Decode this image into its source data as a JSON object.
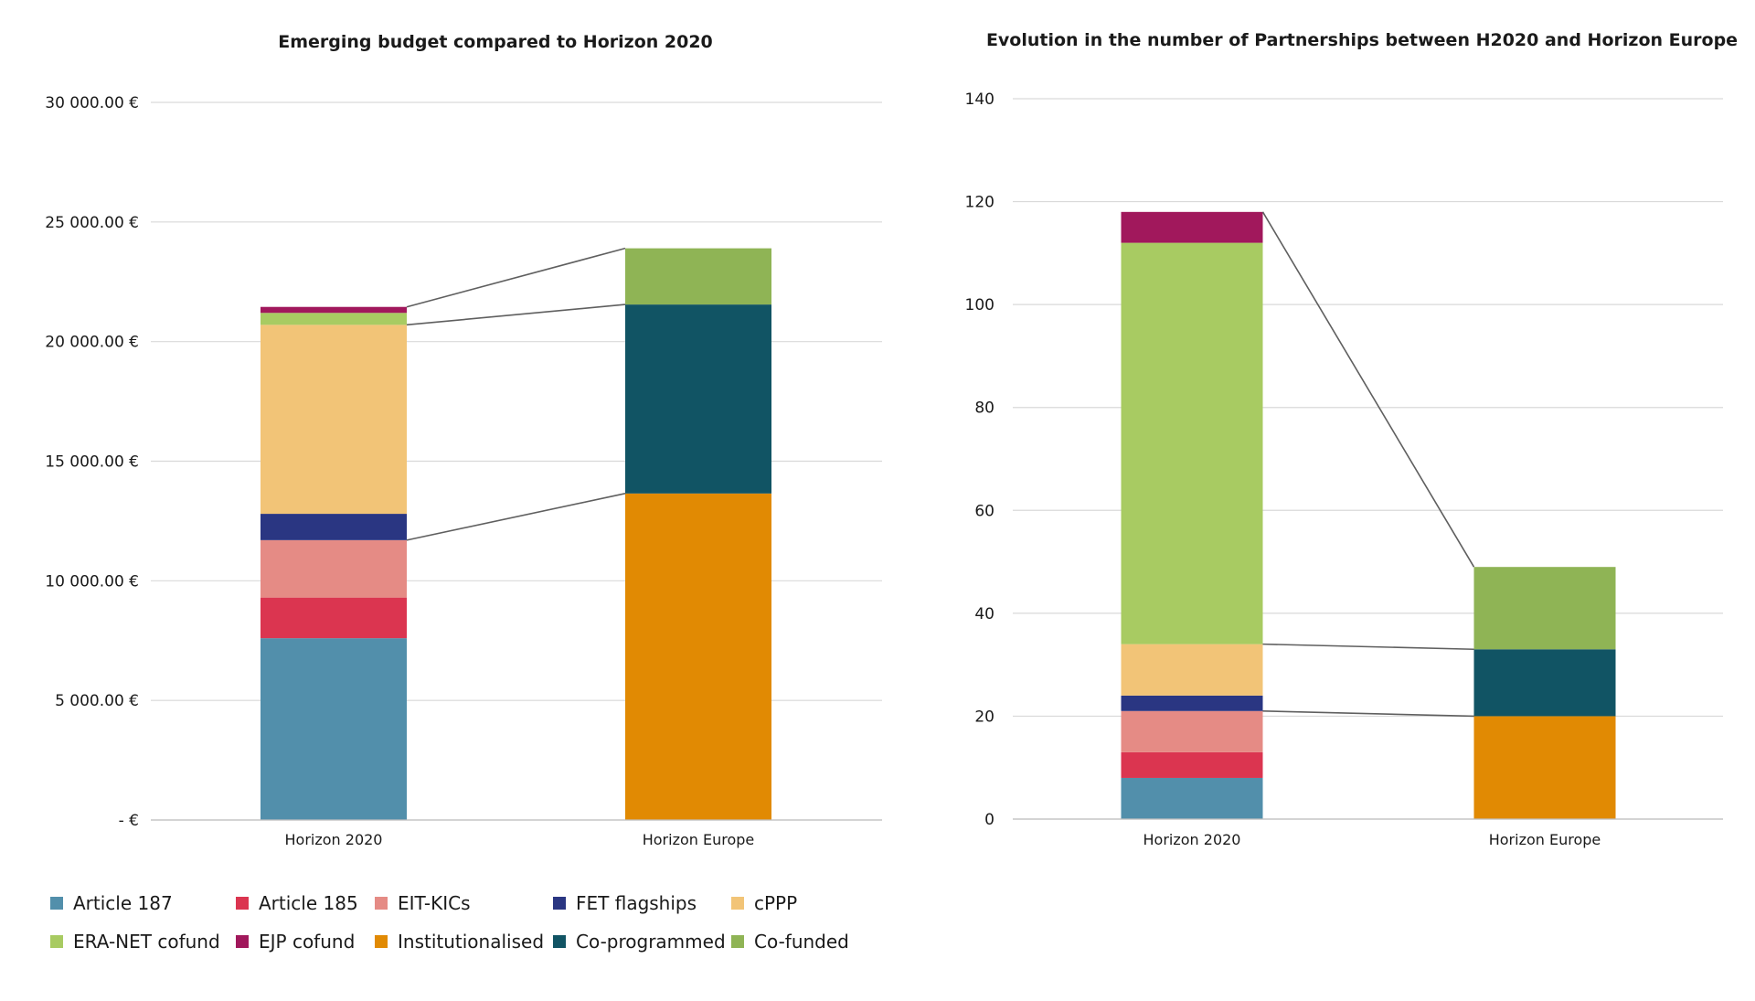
{
  "legend": [
    {
      "name": "Article 187",
      "color": "#528FAB"
    },
    {
      "name": "Article 185",
      "color": "#DB3550"
    },
    {
      "name": "EIT-KICs",
      "color": "#E58B85"
    },
    {
      "name": "FET flagships",
      "color": "#2A3682"
    },
    {
      "name": "cPPP",
      "color": "#F2C477"
    },
    {
      "name": "ERA-NET cofund",
      "color": "#A8CB62"
    },
    {
      "name": "EJP cofund",
      "color": "#A1185C"
    },
    {
      "name": "Institutionalised",
      "color": "#E18A03"
    },
    {
      "name": "Co-programmed",
      "color": "#115464"
    },
    {
      "name": "Co-funded",
      "color": "#8FB455"
    }
  ],
  "chart_data": [
    {
      "type": "bar",
      "stacked": true,
      "title": "Emerging budget compared to Horizon 2020",
      "categories": [
        "Horizon 2020",
        "Horizon Europe"
      ],
      "ylim": [
        0,
        30000
      ],
      "ytick_values": [
        0,
        5000,
        10000,
        15000,
        20000,
        25000,
        30000
      ],
      "ytick_labels": [
        "-   €",
        "5 000.00 €",
        "10 000.00 €",
        "15 000.00 €",
        "20 000.00 €",
        "25 000.00 €",
        "30 000.00 €"
      ],
      "grid": true,
      "series": [
        {
          "name": "Article 187",
          "values": [
            7600,
            0
          ]
        },
        {
          "name": "Article 185",
          "values": [
            1700,
            0
          ]
        },
        {
          "name": "EIT-KICs",
          "values": [
            2400,
            0
          ]
        },
        {
          "name": "FET flagships",
          "values": [
            1100,
            0
          ]
        },
        {
          "name": "cPPP",
          "values": [
            7900,
            0
          ]
        },
        {
          "name": "ERA-NET cofund",
          "values": [
            500,
            0
          ]
        },
        {
          "name": "EJP cofund",
          "values": [
            250,
            0
          ]
        },
        {
          "name": "Institutionalised",
          "values": [
            0,
            13650
          ]
        },
        {
          "name": "Co-programmed",
          "values": [
            0,
            7900
          ]
        },
        {
          "name": "Co-funded",
          "values": [
            0,
            2350
          ]
        }
      ],
      "connectors": [
        {
          "from_category": 0,
          "from_value": 11700,
          "to_category": 1,
          "to_value": 13650
        },
        {
          "from_category": 0,
          "from_value": 20700,
          "to_category": 1,
          "to_value": 21550
        },
        {
          "from_category": 0,
          "from_value": 21450,
          "to_category": 1,
          "to_value": 23900
        }
      ]
    },
    {
      "type": "bar",
      "stacked": true,
      "title": "Evolution in the number of Partnerships between H2020 and Horizon Europe",
      "categories": [
        "Horizon 2020",
        "Horizon Europe"
      ],
      "ylim": [
        0,
        140
      ],
      "ytick_values": [
        0,
        20,
        40,
        60,
        80,
        100,
        120,
        140
      ],
      "ytick_labels": [
        "0",
        "20",
        "40",
        "60",
        "80",
        "100",
        "120",
        "140"
      ],
      "grid": true,
      "series": [
        {
          "name": "Article 187",
          "values": [
            8,
            0
          ]
        },
        {
          "name": "Article 185",
          "values": [
            5,
            0
          ]
        },
        {
          "name": "EIT-KICs",
          "values": [
            8,
            0
          ]
        },
        {
          "name": "FET flagships",
          "values": [
            3,
            0
          ]
        },
        {
          "name": "cPPP",
          "values": [
            10,
            0
          ]
        },
        {
          "name": "ERA-NET cofund",
          "values": [
            78,
            0
          ]
        },
        {
          "name": "EJP cofund",
          "values": [
            6,
            0
          ]
        },
        {
          "name": "Institutionalised",
          "values": [
            0,
            20
          ]
        },
        {
          "name": "Co-programmed",
          "values": [
            0,
            13
          ]
        },
        {
          "name": "Co-funded",
          "values": [
            0,
            16
          ]
        }
      ],
      "connectors": [
        {
          "from_category": 0,
          "from_value": 21,
          "to_category": 1,
          "to_value": 20
        },
        {
          "from_category": 0,
          "from_value": 34,
          "to_category": 1,
          "to_value": 33
        },
        {
          "from_category": 0,
          "from_value": 118,
          "to_category": 1,
          "to_value": 49
        }
      ]
    }
  ]
}
